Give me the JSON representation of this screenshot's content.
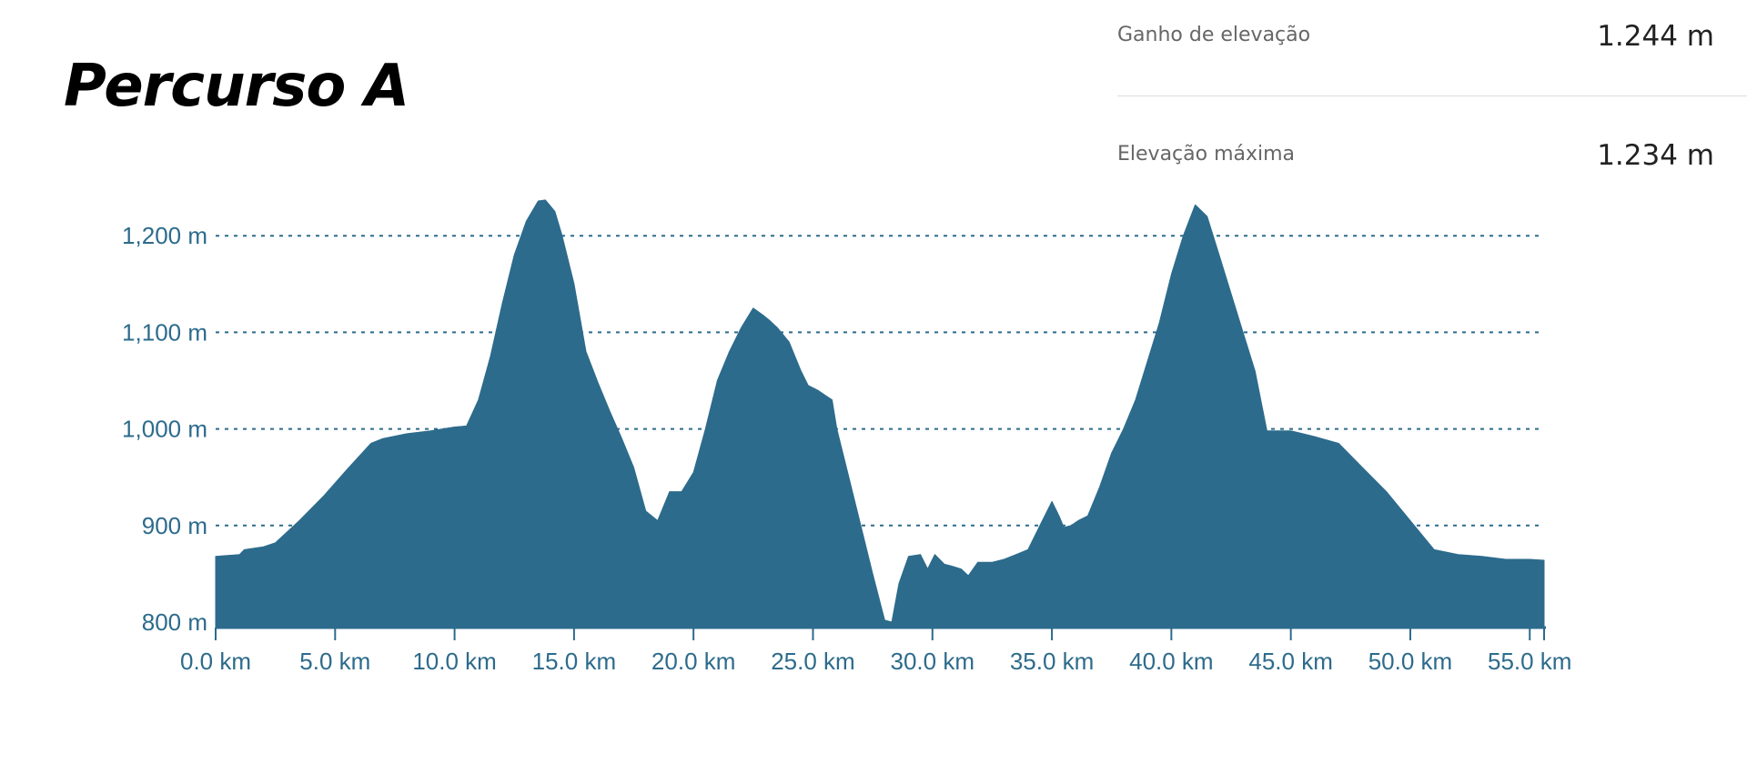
{
  "title": "Percurso A",
  "stats": {
    "elevation_gain_label": "Ganho de elevação",
    "elevation_gain_value": "1.244 m",
    "max_elevation_label": "Elevação máxima",
    "max_elevation_value": "1.234 m"
  },
  "colors": {
    "area_fill": "#2d6b8c",
    "axis": "#2d6b8c",
    "tick_text": "#2d6b8c",
    "grid": "#2d6b8c"
  },
  "chart_data": {
    "type": "area",
    "title": "",
    "xlabel": "",
    "ylabel": "",
    "x_unit": "km",
    "y_unit": "m",
    "xlim": [
      0,
      55.6
    ],
    "ylim": [
      800,
      1240
    ],
    "grid": "horizontal-dashed",
    "x_ticks": [
      0,
      5,
      10,
      15,
      20,
      25,
      30,
      35,
      40,
      45,
      50,
      55
    ],
    "x_tick_labels": [
      "0.0 km",
      "5.0 km",
      "10.0 km",
      "15.0 km",
      "20.0 km",
      "25.0 km",
      "30.0 km",
      "35.0 km",
      "40.0 km",
      "45.0 km",
      "50.0 km",
      "55.0 km"
    ],
    "y_ticks": [
      800,
      900,
      1000,
      1100,
      1200
    ],
    "y_tick_labels": [
      "800 m",
      "900 m",
      "1,000 m",
      "1,100 m",
      "1,200 m"
    ],
    "series": [
      {
        "x": [
          0,
          1.0,
          1.2,
          2.0,
          2.5,
          3.5,
          4.5,
          5.5,
          6.5,
          7.0,
          8.0,
          9.0,
          10.0,
          10.5,
          11.0,
          11.5,
          12.0,
          12.5,
          13.0,
          13.5,
          13.8,
          14.2,
          14.5,
          15.0,
          15.5,
          16.0,
          16.5,
          17.0,
          17.5,
          18.0,
          18.5,
          19.0,
          19.5,
          20.0,
          20.5,
          21.0,
          21.5,
          22.0,
          22.5,
          22.9,
          23.2,
          23.5,
          24.0,
          24.5,
          24.8,
          25.2,
          25.5,
          25.8,
          26.0,
          26.5,
          27.0,
          27.5,
          28.0,
          28.3,
          28.6,
          29.0,
          29.5,
          29.8,
          30.1,
          30.5,
          30.8,
          31.2,
          31.5,
          31.9,
          32.5,
          33.0,
          33.5,
          34.0,
          34.5,
          35.0,
          35.3,
          35.5,
          35.8,
          36.1,
          36.5,
          37.0,
          37.5,
          38.0,
          38.5,
          39.0,
          39.5,
          40.0,
          40.5,
          41.0,
          41.5,
          42.0,
          42.5,
          43.0,
          43.5,
          44.0,
          44.5,
          45.0,
          45.5,
          46.0,
          47.0,
          48.0,
          49.0,
          50.0,
          51.0,
          52.0,
          53.0,
          54.0,
          55.0,
          55.6
        ],
        "y": [
          868,
          870,
          875,
          878,
          882,
          905,
          930,
          958,
          985,
          990,
          995,
          998,
          1002,
          1003,
          1030,
          1075,
          1130,
          1180,
          1215,
          1236,
          1237,
          1225,
          1200,
          1150,
          1080,
          1048,
          1018,
          990,
          960,
          915,
          905,
          935,
          935,
          955,
          1000,
          1050,
          1080,
          1105,
          1125,
          1118,
          1112,
          1105,
          1090,
          1060,
          1045,
          1040,
          1035,
          1030,
          1000,
          950,
          900,
          850,
          802,
          800,
          840,
          868,
          870,
          855,
          870,
          860,
          858,
          855,
          848,
          862,
          862,
          865,
          870,
          875,
          900,
          925,
          910,
          898,
          900,
          905,
          910,
          940,
          975,
          1000,
          1030,
          1070,
          1110,
          1160,
          1200,
          1232,
          1220,
          1180,
          1140,
          1100,
          1060,
          998,
          998,
          998,
          995,
          992,
          985,
          960,
          935,
          905,
          875,
          870,
          868,
          865,
          865,
          864
        ]
      }
    ]
  }
}
